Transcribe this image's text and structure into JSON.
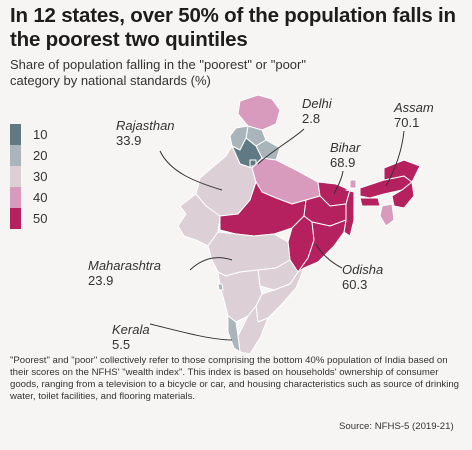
{
  "title": "In 12 states, over 50% of the population falls in the poorest two quintiles",
  "subtitle": "Share of population falling in the \"poorest\" or \"poor\" category by national standards (%)",
  "legend": [
    {
      "label": "10",
      "color": "#5f7a85"
    },
    {
      "label": "20",
      "color": "#a9b5ba"
    },
    {
      "label": "30",
      "color": "#dccfd6"
    },
    {
      "label": "40",
      "color": "#d99bbd"
    },
    {
      "label": "50",
      "color": "#b5205f"
    }
  ],
  "map_colors": {
    "background": "#f7f5f3",
    "border": "#ffffff",
    "leader_line": "#333333"
  },
  "callouts": [
    {
      "state": "Rajasthan",
      "value": "33.9"
    },
    {
      "state": "Delhi",
      "value": "2.8"
    },
    {
      "state": "Bihar",
      "value": "68.9"
    },
    {
      "state": "Assam",
      "value": "70.1"
    },
    {
      "state": "Maharashtra",
      "value": "23.9"
    },
    {
      "state": "Odisha",
      "value": "60.3"
    },
    {
      "state": "Kerala",
      "value": "5.5"
    }
  ],
  "footnote": "\"Poorest\" and \"poor\" collectively refer to those comprising the bottom 40% population of India based on their scores on the NFHS' \"wealth index\". This index is based on households' ownership of consumer goods, ranging from a television to a bicycle or car, and housing characteristics such as source of drinking water, toilet facilities, and flooring materials.",
  "source": "Source: NFHS-5 (2019-21)"
}
